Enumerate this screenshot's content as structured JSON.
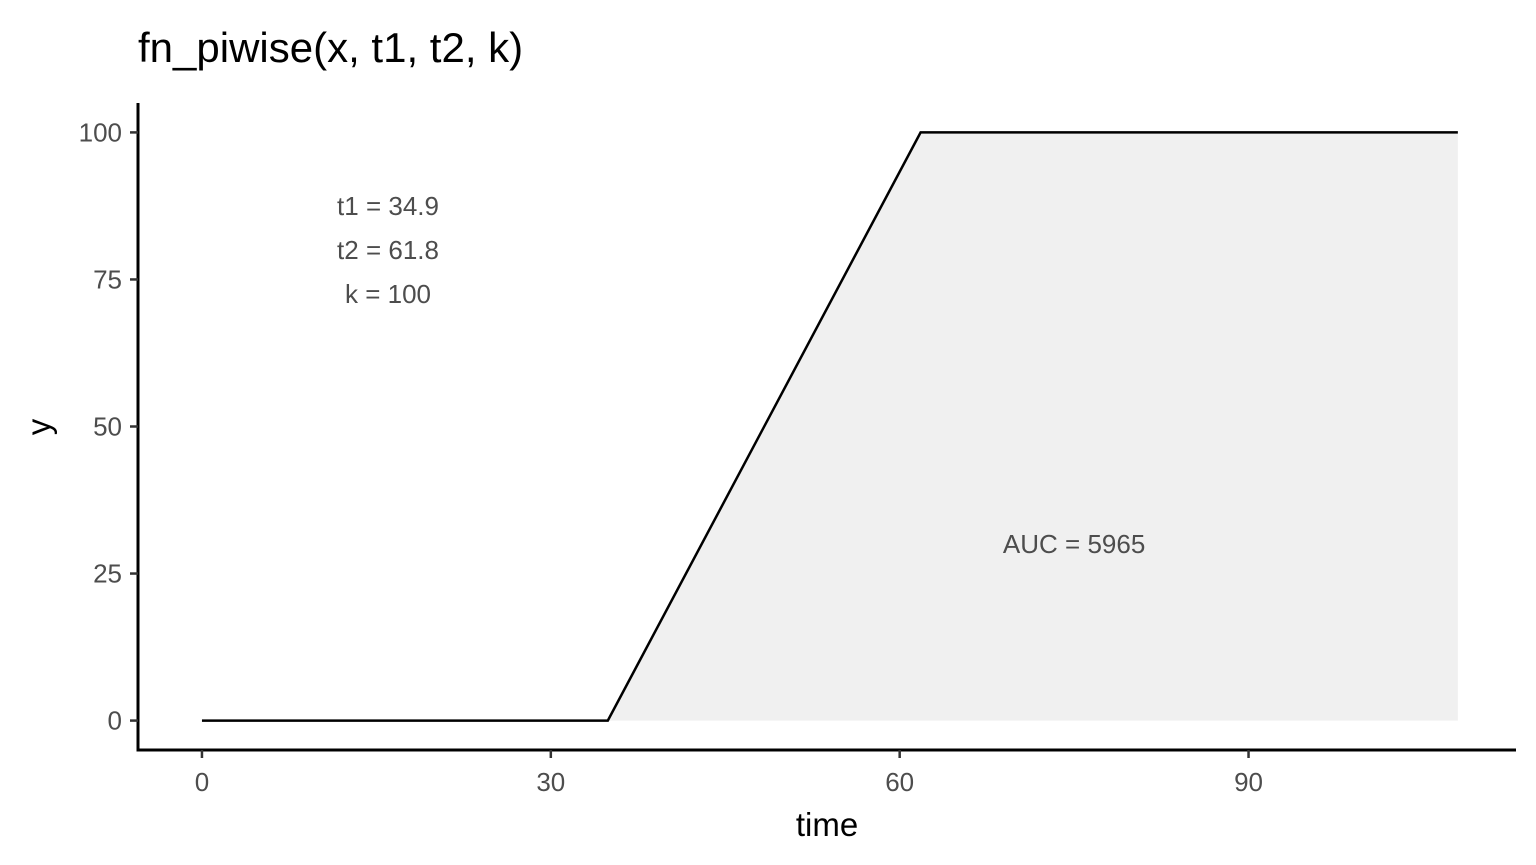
{
  "chart_data": {
    "type": "area",
    "title": "fn_piwise(x, t1, t2, k)",
    "xlabel": "time",
    "ylabel": "y",
    "xlim": [
      -5.5,
      113
    ],
    "ylim": [
      -5,
      105
    ],
    "x_ticks": [
      0,
      30,
      60,
      90
    ],
    "y_ticks": [
      0,
      25,
      50,
      75,
      100
    ],
    "grid": false,
    "series": [
      {
        "x": [
          0,
          34.9,
          61.8,
          108
        ],
        "y": [
          0,
          0,
          100,
          100
        ]
      }
    ],
    "shaded_area": {
      "x": [
        34.9,
        61.8,
        108
      ],
      "y": [
        0,
        100,
        100
      ],
      "fill": "#f0f0f0"
    },
    "annotations": [
      {
        "text": "t1 = 34.9",
        "x": 16,
        "y": 87.5
      },
      {
        "text": "t2 = 61.8",
        "x": 16,
        "y": 80
      },
      {
        "text": "k = 100",
        "x": 16,
        "y": 72.5
      },
      {
        "text": "AUC = 5965",
        "x": 75,
        "y": 30
      }
    ],
    "colors": {
      "line": "#000000",
      "area": "#f0f0f0",
      "axis": "#000000"
    }
  }
}
